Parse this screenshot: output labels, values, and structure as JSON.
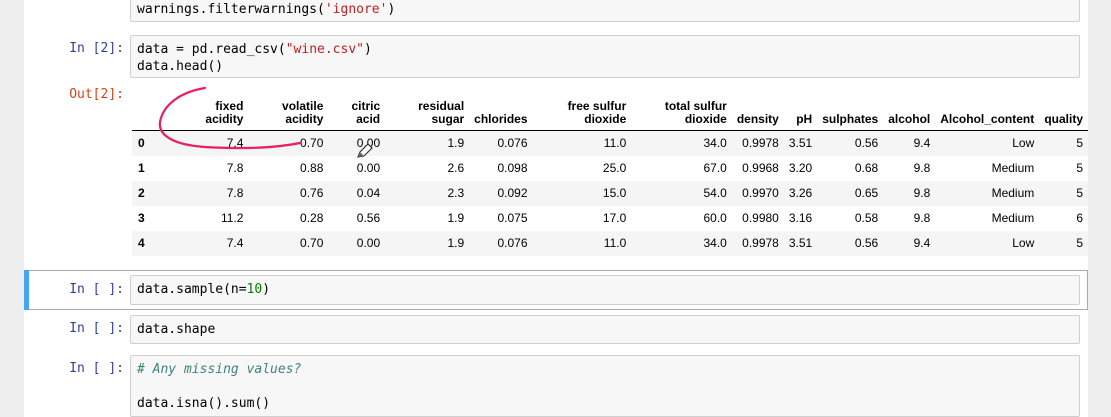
{
  "cells": [
    {
      "prompt": "",
      "lines": [
        "warnings.filterwarnings('ignore')"
      ]
    },
    {
      "prompt": "In [2]:",
      "lines": [
        "data = pd.read_csv(\"wine.csv\")",
        "data.head()"
      ]
    },
    {
      "prompt": "In [ ]:",
      "lines": [
        "data.sample(n=10)"
      ]
    },
    {
      "prompt": "In [ ]:",
      "lines": [
        "data.shape"
      ]
    },
    {
      "prompt": "In [ ]:",
      "lines": [
        "# Any missing values?",
        "",
        "data.isna().sum()"
      ]
    }
  ],
  "code": {
    "c0_pre": "warnings.filterwarnings(",
    "c0_str": "'ignore'",
    "c0_post": ")",
    "c1_pre": "data = pd.read_csv(",
    "c1_str": "\"wine.csv\"",
    "c1_post": ")",
    "c1_line2": "data.head()",
    "c2_pre": "data.sample(n=",
    "c2_num": "10",
    "c2_post": ")",
    "c3": "data.shape",
    "c4_comment": "# Any missing values?",
    "c4_line3": "data.isna().sum()"
  },
  "output_prompt": "Out[2]:",
  "dataframe": {
    "columns": [
      [
        "fixed",
        "acidity"
      ],
      [
        "volatile",
        "acidity"
      ],
      [
        "citric",
        "acid"
      ],
      [
        "residual",
        "sugar"
      ],
      [
        "",
        "chlorides"
      ],
      [
        "free sulfur",
        "dioxide"
      ],
      [
        "total sulfur",
        "dioxide"
      ],
      [
        "",
        "density"
      ],
      [
        "",
        "pH"
      ],
      [
        "",
        "sulphates"
      ],
      [
        "",
        "alcohol"
      ],
      [
        "",
        "Alcohol_content"
      ],
      [
        "",
        "quality"
      ]
    ],
    "rows": [
      {
        "index": "0",
        "values": [
          "7.4",
          "0.70",
          "0.00",
          "1.9",
          "0.076",
          "11.0",
          "34.0",
          "0.9978",
          "3.51",
          "0.56",
          "9.4",
          "Low",
          "5"
        ]
      },
      {
        "index": "1",
        "values": [
          "7.8",
          "0.88",
          "0.00",
          "2.6",
          "0.098",
          "25.0",
          "67.0",
          "0.9968",
          "3.20",
          "0.68",
          "9.8",
          "Medium",
          "5"
        ]
      },
      {
        "index": "2",
        "values": [
          "7.8",
          "0.76",
          "0.04",
          "2.3",
          "0.092",
          "15.0",
          "54.0",
          "0.9970",
          "3.26",
          "0.65",
          "9.8",
          "Medium",
          "5"
        ]
      },
      {
        "index": "3",
        "values": [
          "11.2",
          "0.28",
          "0.56",
          "1.9",
          "0.075",
          "17.0",
          "60.0",
          "0.9980",
          "3.16",
          "0.58",
          "9.8",
          "Medium",
          "6"
        ]
      },
      {
        "index": "4",
        "values": [
          "7.4",
          "0.70",
          "0.00",
          "1.9",
          "0.076",
          "11.0",
          "34.0",
          "0.9978",
          "3.51",
          "0.56",
          "9.4",
          "Low",
          "5"
        ]
      }
    ]
  },
  "colors": {
    "prompt_in": "#303f9f",
    "prompt_out": "#d84315",
    "selected_cell": "#42a5f5",
    "annotation_stroke": "#e91e63"
  },
  "icons": {
    "cursor": "pencil-cursor-icon"
  }
}
